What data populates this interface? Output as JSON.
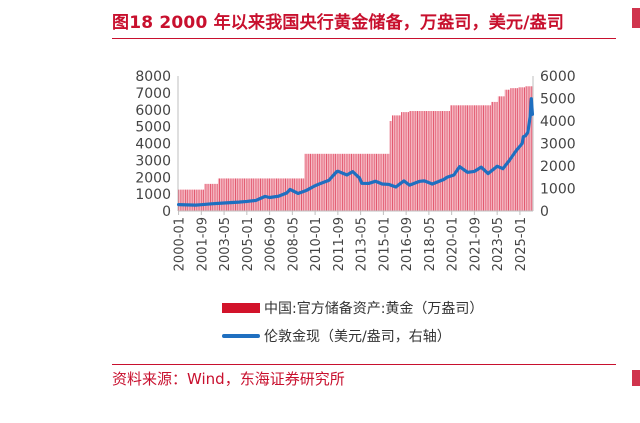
{
  "title": "图18  2000 年以来我国央行黄金储备，万盎司，美元/盎司",
  "source": "资料来源：Wind，东海证券研究所",
  "colors": {
    "accent": "#c8102e",
    "bars": "#e04a63",
    "line": "#1f6fc0",
    "axis": "#bfbfbf",
    "text": "#444444"
  },
  "chart_data": {
    "type": "bar+line",
    "legend_placement": "bottom",
    "grid": false,
    "x_tick_labels": [
      "2000-01",
      "2001-09",
      "2003-05",
      "2005-01",
      "2006-09",
      "2008-05",
      "2010-01",
      "2011-09",
      "2013-05",
      "2015-01",
      "2016-09",
      "2018-05",
      "2020-01",
      "2021-09",
      "2023-05",
      "2025-01"
    ],
    "y_left": {
      "min": 0,
      "max": 8000,
      "ticks": [
        0,
        1000,
        2000,
        3000,
        4000,
        5000,
        6000,
        7000,
        8000
      ]
    },
    "y_right": {
      "min": 0,
      "max": 6000,
      "ticks": [
        0,
        1000,
        2000,
        3000,
        4000,
        5000,
        6000
      ]
    },
    "x_range": [
      "2000-01",
      "2025-12"
    ],
    "series": [
      {
        "name": "中国:官方储备资产:黄金（万盎司）",
        "kind": "bar",
        "axis": "left",
        "steps": [
          [
            "2000-01",
            1267
          ],
          [
            "2001-12",
            1608
          ],
          [
            "2002-12",
            1929
          ],
          [
            "2009-04",
            3389
          ],
          [
            "2015-07",
            5332
          ],
          [
            "2015-09",
            5666
          ],
          [
            "2015-12",
            5666
          ],
          [
            "2016-05",
            5861
          ],
          [
            "2016-12",
            5924
          ],
          [
            "2019-12",
            6264
          ],
          [
            "2022-12",
            6464
          ],
          [
            "2023-06",
            6795
          ],
          [
            "2023-12",
            7187
          ],
          [
            "2024-05",
            7280
          ],
          [
            "2024-12",
            7329
          ],
          [
            "2025-06",
            7390
          ]
        ]
      },
      {
        "name": "伦敦金现（美元/盎司，右轴）",
        "kind": "line",
        "axis": "right",
        "points": [
          [
            "2000-01",
            285
          ],
          [
            "2001-04",
            260
          ],
          [
            "2001-09",
            280
          ],
          [
            "2002-06",
            320
          ],
          [
            "2003-05",
            355
          ],
          [
            "2004-06",
            395
          ],
          [
            "2005-01",
            425
          ],
          [
            "2005-09",
            470
          ],
          [
            "2006-05",
            650
          ],
          [
            "2006-09",
            600
          ],
          [
            "2007-05",
            660
          ],
          [
            "2007-12",
            800
          ],
          [
            "2008-03",
            960
          ],
          [
            "2008-10",
            780
          ],
          [
            "2009-06",
            930
          ],
          [
            "2009-12",
            1100
          ],
          [
            "2010-06",
            1230
          ],
          [
            "2011-01",
            1360
          ],
          [
            "2011-08",
            1750
          ],
          [
            "2011-09",
            1770
          ],
          [
            "2012-05",
            1600
          ],
          [
            "2012-10",
            1750
          ],
          [
            "2013-04",
            1470
          ],
          [
            "2013-06",
            1230
          ],
          [
            "2013-12",
            1225
          ],
          [
            "2014-06",
            1320
          ],
          [
            "2014-12",
            1200
          ],
          [
            "2015-06",
            1180
          ],
          [
            "2015-12",
            1065
          ],
          [
            "2016-07",
            1340
          ],
          [
            "2016-12",
            1150
          ],
          [
            "2017-09",
            1320
          ],
          [
            "2018-01",
            1340
          ],
          [
            "2018-08",
            1200
          ],
          [
            "2019-06",
            1400
          ],
          [
            "2019-09",
            1500
          ],
          [
            "2020-03",
            1600
          ],
          [
            "2020-08",
            1970
          ],
          [
            "2021-03",
            1720
          ],
          [
            "2021-09",
            1760
          ],
          [
            "2022-03",
            1950
          ],
          [
            "2022-09",
            1660
          ],
          [
            "2023-05",
            1990
          ],
          [
            "2023-10",
            1880
          ],
          [
            "2024-03",
            2200
          ],
          [
            "2024-10",
            2700
          ],
          [
            "2025-03",
            3000
          ],
          [
            "2025-04",
            3300
          ],
          [
            "2025-06",
            3350
          ],
          [
            "2025-08",
            3500
          ],
          [
            "2025-10",
            4200
          ],
          [
            "2025-11",
            4990
          ],
          [
            "2025-12",
            4300
          ]
        ]
      }
    ]
  }
}
